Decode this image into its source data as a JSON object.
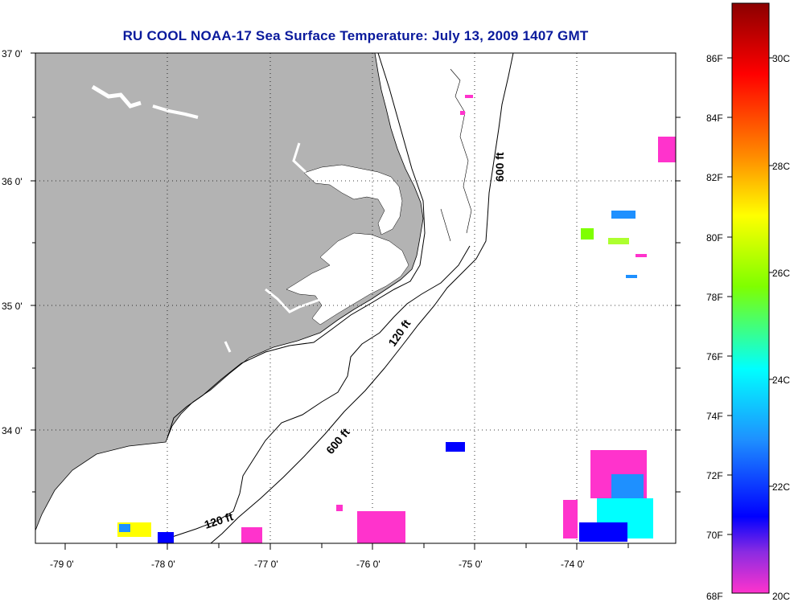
{
  "title": "RU COOL  NOAA-17  Sea Surface Temperature:  July 13, 2009 1407 GMT",
  "map": {
    "lat_labels": [
      "37 0'",
      "36 0'",
      "35 0'",
      "34 0'"
    ],
    "lon_labels": [
      "-79 0'",
      "-78 0'",
      "-77 0'",
      "-76 0'",
      "-75 0'",
      "-74 0'"
    ],
    "isobath_labels": [
      "600 ft",
      "120 ft",
      "600 ft",
      "120 ft"
    ],
    "land_color": "#b3b3b3",
    "water_color": "#ffffff",
    "coast_color": "#000000"
  },
  "colorbar": {
    "fahrenheit": [
      "86F",
      "84F",
      "82F",
      "80F",
      "78F",
      "76F",
      "74F",
      "72F",
      "70F",
      "68F"
    ],
    "celsius": [
      "30C",
      "28C",
      "26C",
      "24C",
      "22C",
      "20C"
    ],
    "stops": [
      "#8b0000",
      "#ff0000",
      "#ff8c00",
      "#ffff00",
      "#7fff00",
      "#00ffff",
      "#1e90ff",
      "#0000ff",
      "#8a2be2",
      "#ff00ff",
      "#ff33cc"
    ]
  }
}
